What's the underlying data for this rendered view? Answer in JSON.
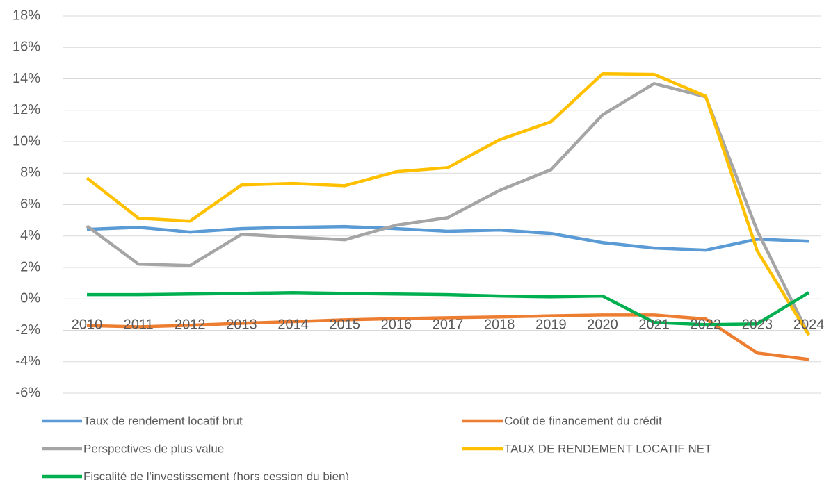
{
  "chart_data": {
    "type": "line",
    "categories": [
      "2010",
      "2011",
      "2012",
      "2013",
      "2014",
      "2015",
      "2016",
      "2017",
      "2018",
      "2019",
      "2020",
      "2021",
      "2022",
      "2023",
      "2024"
    ],
    "series": [
      {
        "name": "Taux de rendement locatif brut",
        "color": "#5b9bd5",
        "values": [
          4.42,
          4.55,
          4.25,
          4.47,
          4.55,
          4.6,
          4.47,
          4.3,
          4.38,
          4.16,
          3.58,
          3.23,
          3.1,
          3.8,
          3.67
        ]
      },
      {
        "name": "Coût de financement du crédit",
        "color": "#ed7d31",
        "values": [
          -1.7,
          -1.78,
          -1.68,
          -1.55,
          -1.45,
          -1.33,
          -1.26,
          -1.2,
          -1.15,
          -1.08,
          -1.02,
          -1.02,
          -1.28,
          -3.45,
          -3.85
        ]
      },
      {
        "name": "Perspectives de plus value",
        "color": "#a5a5a5",
        "values": [
          4.64,
          2.21,
          2.12,
          4.11,
          3.93,
          3.76,
          4.69,
          5.17,
          6.9,
          8.22,
          11.71,
          13.7,
          12.86,
          4.33,
          -2.3
        ]
      },
      {
        "name": "TAUX DE RENDEMENT LOCATIF NET",
        "color": "#ffc000",
        "values": [
          7.69,
          5.13,
          4.95,
          7.25,
          7.34,
          7.2,
          8.09,
          8.35,
          10.12,
          11.27,
          14.32,
          14.28,
          12.9,
          3.05,
          -2.3
        ]
      },
      {
        "name": "Fiscalité de l'investissement (hors cession du bien)",
        "color": "#00b050",
        "values": [
          0.27,
          0.27,
          0.31,
          0.35,
          0.4,
          0.35,
          0.31,
          0.27,
          0.18,
          0.13,
          0.18,
          -1.5,
          -1.64,
          -1.59,
          0.4
        ]
      }
    ],
    "ylim": [
      -6,
      18
    ],
    "yticks": [
      {
        "value": -6,
        "label": "-6%"
      },
      {
        "value": -4,
        "label": "-4%"
      },
      {
        "value": -2,
        "label": "-2%"
      },
      {
        "value": 0,
        "label": "0%"
      },
      {
        "value": 2,
        "label": "2%"
      },
      {
        "value": 4,
        "label": "4%"
      },
      {
        "value": 6,
        "label": "6%"
      },
      {
        "value": 8,
        "label": "8%"
      },
      {
        "value": 10,
        "label": "10%"
      },
      {
        "value": 12,
        "label": "12%"
      },
      {
        "value": 14,
        "label": "14%"
      },
      {
        "value": 16,
        "label": "16%"
      },
      {
        "value": 18,
        "label": "18%"
      }
    ],
    "grid": true,
    "legend": "bottom"
  }
}
